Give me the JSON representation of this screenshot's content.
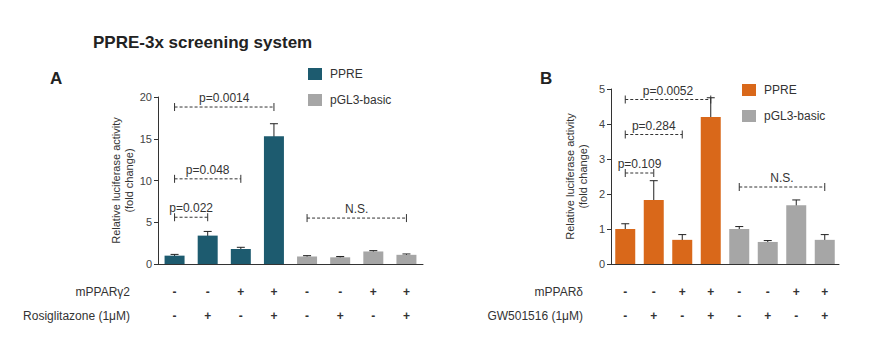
{
  "title": "PPRE-3x screening system",
  "chart_data": [
    {
      "type": "bar",
      "panel": "A",
      "ylabel": "Relative luciferase activity\n(fold change)",
      "categories": [
        null,
        null,
        null,
        null,
        null,
        null,
        null,
        null
      ],
      "series": [
        {
          "name": "PPRE",
          "color": "#1d5b6f",
          "values": [
            1.0,
            3.4,
            1.8,
            15.3,
            null,
            null,
            null,
            null
          ],
          "errors": [
            0.15,
            0.5,
            0.2,
            1.5,
            null,
            null,
            null,
            null
          ]
        },
        {
          "name": "pGL3-basic",
          "color": "#a6a6a6",
          "values": [
            null,
            null,
            null,
            null,
            0.9,
            0.8,
            1.5,
            1.1
          ],
          "errors": [
            null,
            null,
            null,
            null,
            0.1,
            0.1,
            0.1,
            0.1
          ]
        }
      ],
      "ylim": [
        0,
        20
      ],
      "yticks": [
        0,
        5,
        10,
        15,
        20
      ],
      "legend": "upper right",
      "tick_labels": "y",
      "conditions": [
        {
          "label": "mPPARγ2",
          "marks": [
            "-",
            "-",
            "+",
            "+",
            "-",
            "-",
            "+",
            "+"
          ]
        },
        {
          "label": "Rosiglitazone (1μM)",
          "marks": [
            "-",
            "+",
            "-",
            "+",
            "-",
            "+",
            "-",
            "+"
          ]
        }
      ],
      "annotations": [
        {
          "text": "p=0.0014",
          "from": 0,
          "to": 3,
          "y": 18.8
        },
        {
          "text": "p=0.048",
          "from": 0,
          "to": 2,
          "y": 10.2
        },
        {
          "text": "p=0.022",
          "from": 0,
          "to": 1,
          "y": 5.6
        },
        {
          "text": "N.S.",
          "from": 4,
          "to": 7,
          "y": 5.5
        }
      ]
    },
    {
      "type": "bar",
      "panel": "B",
      "ylabel": "Relative luciferase activity\n(fold change)",
      "categories": [
        null,
        null,
        null,
        null,
        null,
        null,
        null,
        null
      ],
      "series": [
        {
          "name": "PPRE",
          "color": "#d9681a",
          "values": [
            1.0,
            1.83,
            0.69,
            4.2,
            null,
            null,
            null,
            null
          ],
          "errors": [
            0.15,
            0.55,
            0.15,
            0.55,
            null,
            null,
            null,
            null
          ]
        },
        {
          "name": "pGL3-basic",
          "color": "#a6a6a6",
          "values": [
            null,
            null,
            null,
            null,
            1.0,
            0.63,
            1.68,
            0.69
          ],
          "errors": [
            null,
            null,
            null,
            null,
            0.07,
            0.04,
            0.15,
            0.15
          ]
        }
      ],
      "ylim": [
        0,
        5
      ],
      "yticks": [
        0,
        1,
        2,
        3,
        4,
        5
      ],
      "legend": "upper right",
      "tick_labels": "y",
      "conditions": [
        {
          "label": "mPPARδ",
          "marks": [
            "-",
            "-",
            "+",
            "+",
            "-",
            "-",
            "+",
            "+"
          ]
        },
        {
          "label": "GW501516 (1μM)",
          "marks": [
            "-",
            "+",
            "-",
            "+",
            "-",
            "+",
            "-",
            "+"
          ]
        }
      ],
      "annotations": [
        {
          "text": "p=0.0052",
          "from": 0,
          "to": 3,
          "y": 4.7
        },
        {
          "text": "p=0.284",
          "from": 0,
          "to": 2,
          "y": 3.7
        },
        {
          "text": "p=0.109",
          "from": 0,
          "to": 1,
          "y": 2.6
        },
        {
          "text": "N.S.",
          "from": 4,
          "to": 7,
          "y": 2.2
        }
      ]
    }
  ]
}
